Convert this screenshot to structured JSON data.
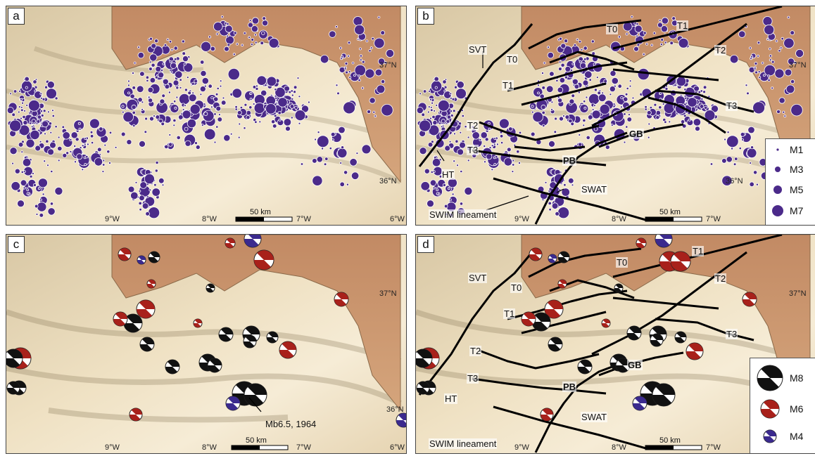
{
  "panels": {
    "a": {
      "label": "a"
    },
    "b": {
      "label": "b"
    },
    "c": {
      "label": "c"
    },
    "d": {
      "label": "d"
    }
  },
  "coords": {
    "lon9": "9°W",
    "lon8": "8°W",
    "lon7": "7°W",
    "lon6": "6°W",
    "lat37": "37°N",
    "lat36": "36°N"
  },
  "scale": {
    "label": "50 km"
  },
  "structures": {
    "SVT": "SVT",
    "T0": "T0",
    "T1": "T1",
    "T2": "T2",
    "T3": "T3",
    "HT": "HT",
    "GB": "GB",
    "PB": "PB",
    "SWAT": "SWAT",
    "SWIM": "SWIM lineament"
  },
  "annotation": {
    "event": "Mb6.5, 1964"
  },
  "legend_magnitude": {
    "m1": "M1",
    "m3": "M3",
    "m5": "M5",
    "m7": "M7"
  },
  "legend_mechanism": {
    "m8": "M8",
    "m6": "M6",
    "m4": "M4"
  },
  "colors": {
    "seismicity": "#4b2a8a",
    "sea": "#efe2c6",
    "land": "#c9966f",
    "mechanism_large": "#111111",
    "mechanism_medium": "#a8211b",
    "mechanism_small": "#3b2a8e",
    "faults": "#000000"
  }
}
